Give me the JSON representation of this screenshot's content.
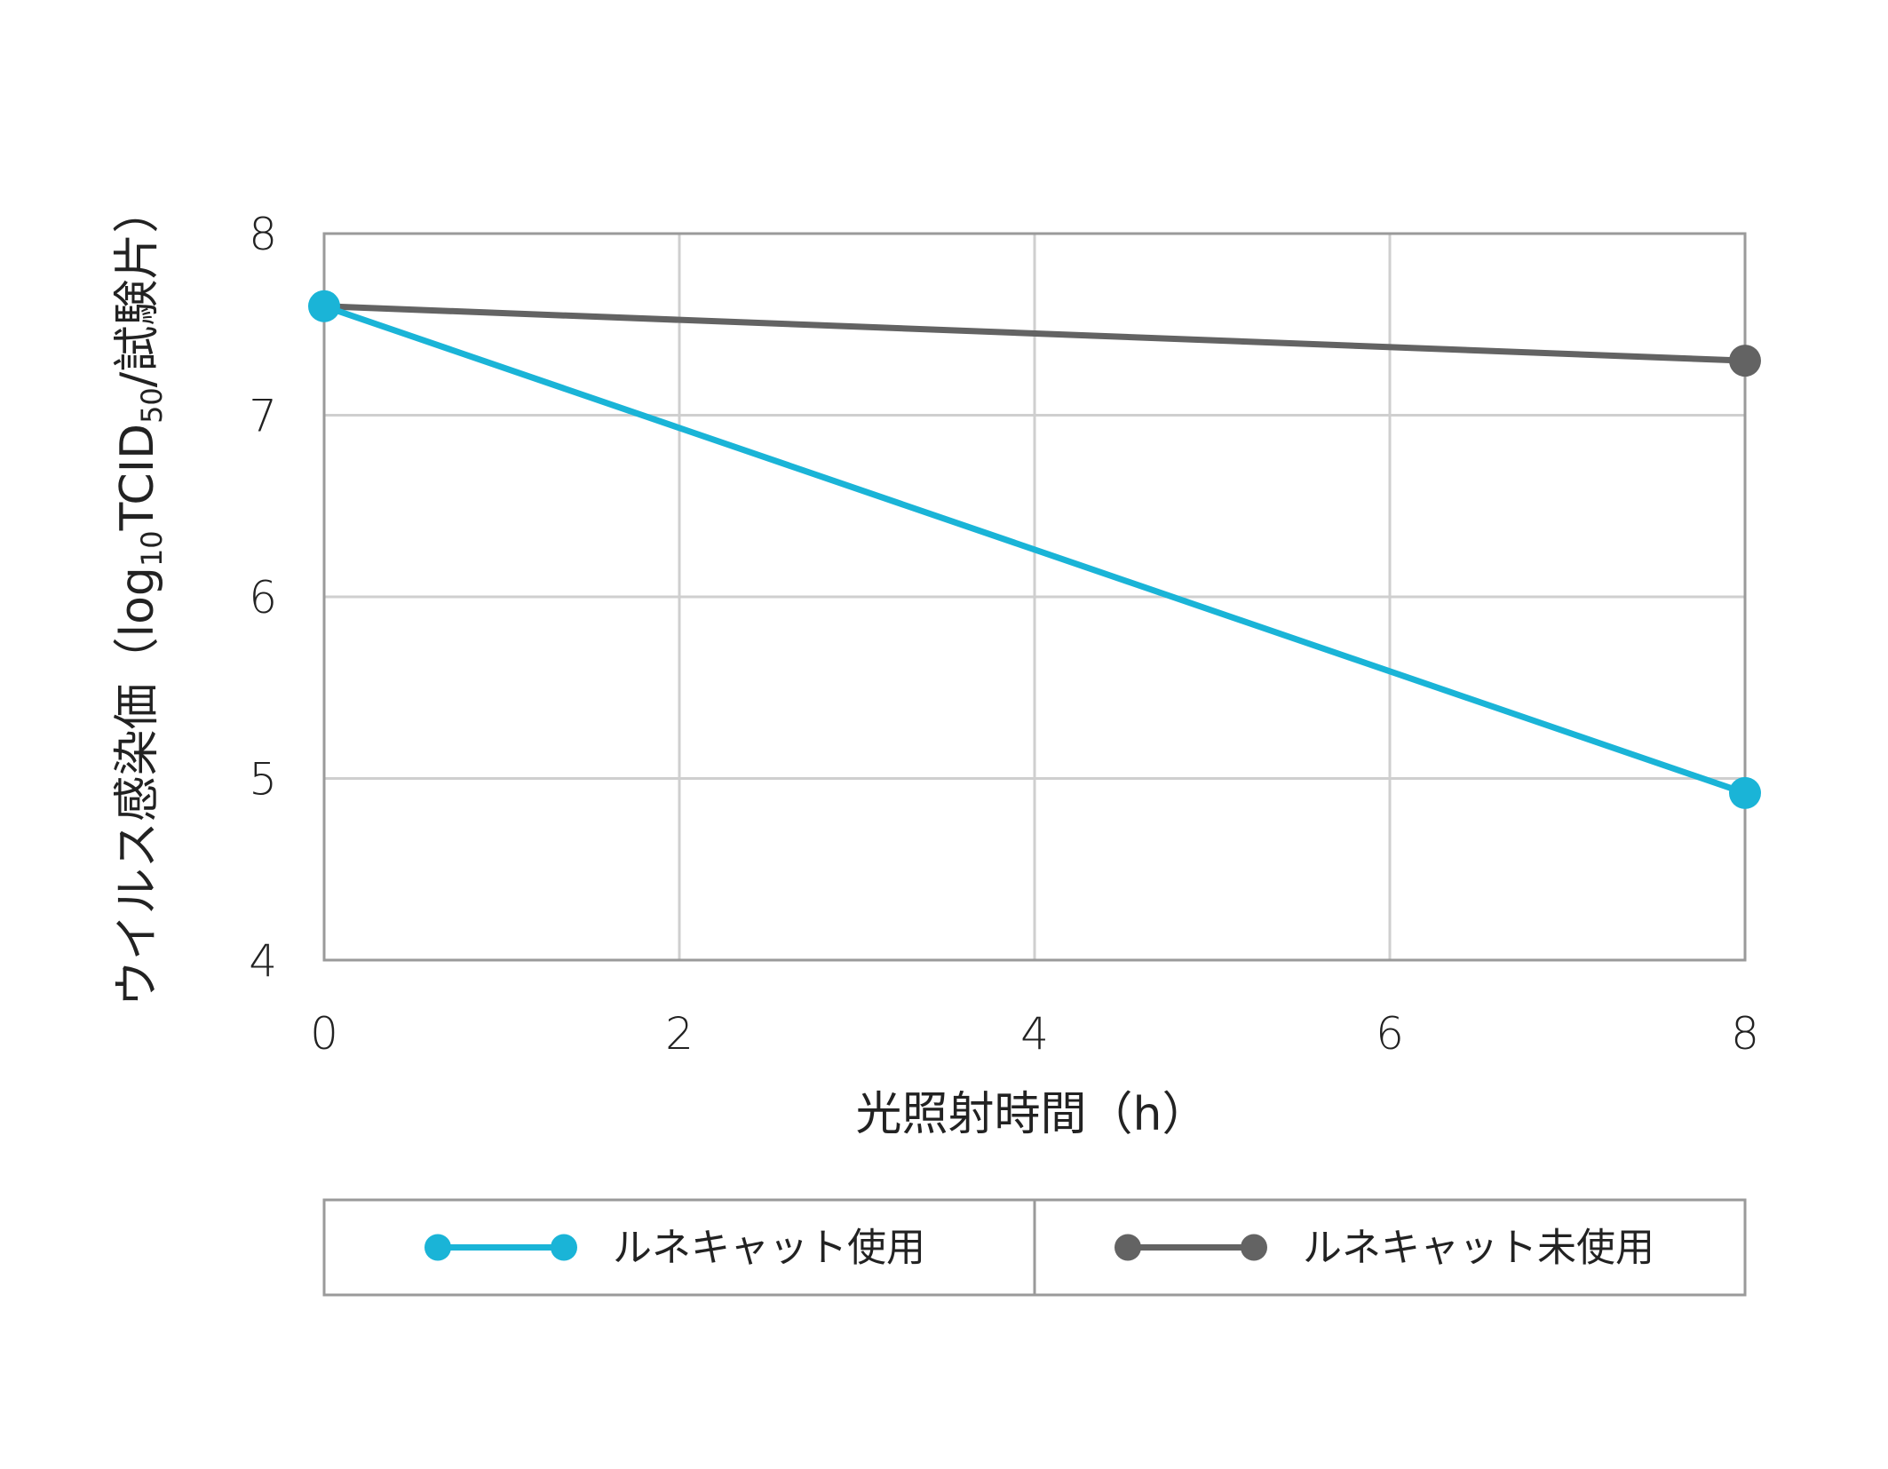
{
  "chart_data": {
    "type": "line",
    "x": [
      0,
      8
    ],
    "x_ticks": [
      "0",
      "2",
      "4",
      "6",
      "8"
    ],
    "y_ticks": [
      "4",
      "5",
      "6",
      "7",
      "8"
    ],
    "xlim": [
      0,
      8
    ],
    "ylim": [
      4,
      8
    ],
    "x_gridlines": [
      0,
      2,
      4,
      6,
      8
    ],
    "y_gridlines": [
      4,
      5,
      6,
      7,
      8
    ],
    "xlabel": "光照射時間（h）",
    "ylabel_parts": [
      "ウイルス感染価（log",
      "10",
      "TCID",
      "50",
      "/試験片）"
    ],
    "grid": true,
    "legend_position": "bottom",
    "series": [
      {
        "name": "ルネキャット使用",
        "values": [
          7.6,
          4.92
        ],
        "color": "#1ab4d7"
      },
      {
        "name": "ルネキャット未使用",
        "values": [
          7.6,
          7.3
        ],
        "color": "#636363"
      }
    ]
  }
}
